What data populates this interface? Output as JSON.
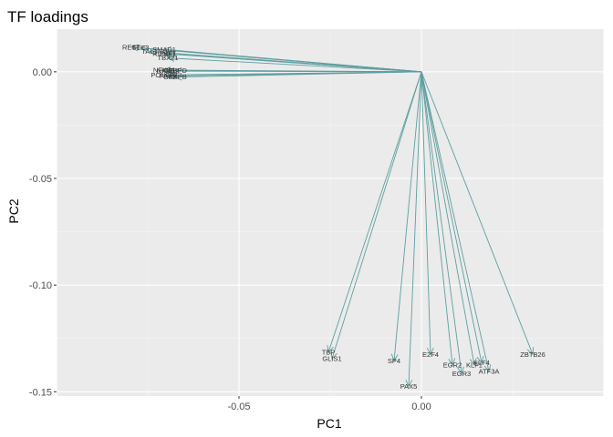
{
  "chart_data": {
    "type": "scatter",
    "subtype": "biplot-arrows",
    "title": "TF loadings",
    "xlabel": "PC1",
    "ylabel": "PC2",
    "xlim": [
      -0.1,
      0.05
    ],
    "ylim": [
      -0.152,
      0.02
    ],
    "x_ticks": [
      -0.05,
      0.0
    ],
    "x_tick_labels": [
      "-0.05",
      "0.00"
    ],
    "y_ticks": [
      0.0,
      -0.05,
      -0.1,
      -0.15
    ],
    "y_tick_labels": [
      "0.00",
      "-0.05",
      "-0.10",
      "-0.15"
    ],
    "grid": true,
    "legend": "none",
    "origin": [
      0,
      0
    ],
    "colors": {
      "arrow": "#5f9ea0",
      "panel_background": "#ebebeb",
      "grid_major": "#ffffff",
      "grid_minor": "#f5f5f5",
      "label": "#333333"
    },
    "points": [
      {
        "label": "REST",
        "x": -0.0795,
        "y": 0.0115
      },
      {
        "label": "TCF3",
        "x": -0.077,
        "y": 0.0112
      },
      {
        "label": "SMAD1",
        "x": -0.0705,
        "y": 0.0105
      },
      {
        "label": "TAL1",
        "x": -0.0745,
        "y": 0.0095
      },
      {
        "label": "RUNX1",
        "x": -0.0705,
        "y": 0.0085
      },
      {
        "label": "EBF1",
        "x": -0.0695,
        "y": 0.0085
      },
      {
        "label": "TBX21",
        "x": -0.0695,
        "y": 0.0065
      },
      {
        "label": "NFKB1",
        "x": -0.0705,
        "y": 0.0008
      },
      {
        "label": "NFKB2",
        "x": -0.0695,
        "y": 0.0003
      },
      {
        "label": "CEBPD",
        "x": -0.0675,
        "y": 0.0005
      },
      {
        "label": "POU2F2",
        "x": -0.0705,
        "y": -0.0015
      },
      {
        "label": "PAX8",
        "x": -0.0695,
        "y": -0.002
      },
      {
        "label": "CEBPB",
        "x": -0.0675,
        "y": -0.0025
      },
      {
        "label": "TBP",
        "x": -0.0255,
        "y": -0.1315
      },
      {
        "label": "GLIS1",
        "x": -0.0245,
        "y": -0.1345
      },
      {
        "label": "SP4",
        "x": -0.0075,
        "y": -0.1355
      },
      {
        "label": "PAX5",
        "x": -0.0035,
        "y": -0.1475
      },
      {
        "label": "E2F4",
        "x": 0.0025,
        "y": -0.1325
      },
      {
        "label": "EGR2",
        "x": 0.0085,
        "y": -0.1375
      },
      {
        "label": "EGR3",
        "x": 0.011,
        "y": -0.1415
      },
      {
        "label": "KLF1",
        "x": 0.0145,
        "y": -0.1375
      },
      {
        "label": "KLF4",
        "x": 0.0165,
        "y": -0.1365
      },
      {
        "label": "ATF3A",
        "x": 0.0185,
        "y": -0.1405
      },
      {
        "label": "ZBTB26",
        "x": 0.0305,
        "y": -0.1325
      }
    ]
  }
}
